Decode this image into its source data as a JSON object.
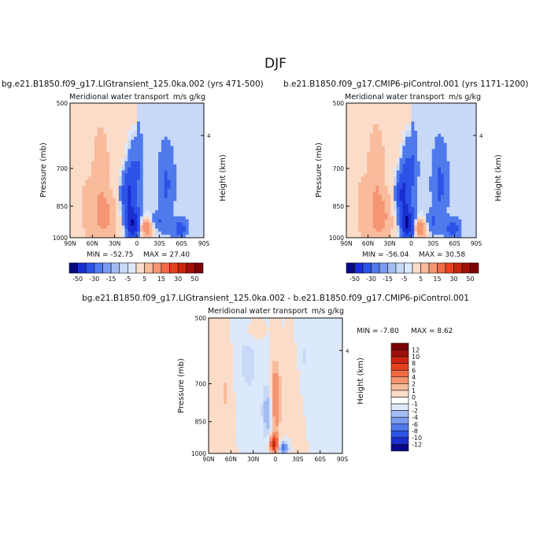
{
  "figure_title": "DJF",
  "chart_data": [
    {
      "type": "heatmap",
      "run_title": "bg.e21.B1850.f09_g17.LIGtransient_125.0ka.002 (yrs 471-500)",
      "subtitle": "Meridional water transport",
      "units": "m/s g/kg",
      "ylabel": "Pressure (mb)",
      "y2label": "Height (km)",
      "x_ticks": [
        "90N",
        "60N",
        "30N",
        "0",
        "30S",
        "60S",
        "90S"
      ],
      "y_ticks": [
        "500",
        "700",
        "850",
        "1000"
      ],
      "y2_ticks": [
        "4"
      ],
      "ylim": [
        1000,
        500
      ],
      "min_label": "MIN = -52.75",
      "max_label": "MAX = 27.40",
      "min": -52.75,
      "max": 27.4,
      "colorbar_levels": [
        "-50",
        "-30",
        "-15",
        "-5",
        "5",
        "15",
        "30",
        "50"
      ]
    },
    {
      "type": "heatmap",
      "run_title": "b.e21.B1850.f09_g17.CMIP6-piControl.001 (yrs 1171-1200)",
      "subtitle": "Meridional water transport",
      "units": "m/s g/kg",
      "ylabel": "Pressure (mb)",
      "y2label": "Height (km)",
      "x_ticks": [
        "90N",
        "60N",
        "30N",
        "0",
        "30S",
        "60S",
        "90S"
      ],
      "y_ticks": [
        "500",
        "700",
        "850",
        "1000"
      ],
      "y2_ticks": [
        "4"
      ],
      "ylim": [
        1000,
        500
      ],
      "min_label": "MIN = -56.04",
      "max_label": "MAX = 30.58",
      "min": -56.04,
      "max": 30.58,
      "colorbar_levels": [
        "-50",
        "-30",
        "-15",
        "-5",
        "5",
        "15",
        "30",
        "50"
      ]
    },
    {
      "type": "heatmap",
      "run_title": "bg.e21.B1850.f09_g17.LIGtransient_125.0ka.002 - b.e21.B1850.f09_g17.CMIP6-piControl.001",
      "subtitle": "Meridional water transport",
      "units": "m/s g/kg",
      "ylabel": "Pressure (mb)",
      "y2label": "Height (km)",
      "x_ticks": [
        "90N",
        "60N",
        "30N",
        "0",
        "30S",
        "60S",
        "90S"
      ],
      "y_ticks": [
        "500",
        "700",
        "850",
        "1000"
      ],
      "y2_ticks": [
        "4"
      ],
      "ylim": [
        1000,
        500
      ],
      "min_label": "MIN =  -7.80",
      "max_label": "MAX =   8.62",
      "min": -7.8,
      "max": 8.62,
      "colorbar_levels": [
        "12",
        "10",
        "8",
        "6",
        "4",
        "2",
        "1",
        "0",
        "-1",
        "-2",
        "-4",
        "-6",
        "-8",
        "-10",
        "-12"
      ]
    }
  ],
  "palette": {
    "neg": [
      "#08088a",
      "#1a2fd0",
      "#2c52e8",
      "#4f7aeb",
      "#7a9cf0",
      "#a3bcf4",
      "#c8d8f7",
      "#dce8fb"
    ],
    "pos": [
      "#fbdcc8",
      "#f8bb9c",
      "#f59572",
      "#f26a45",
      "#e8401f",
      "#cc2410",
      "#a01008",
      "#7a0404"
    ]
  }
}
